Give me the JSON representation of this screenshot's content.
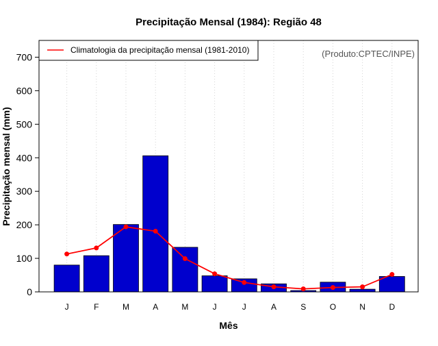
{
  "chart_data": {
    "type": "bar",
    "title": "Precipitação Mensal (1984): Região 48",
    "xlabel": "Mês",
    "ylabel": "Precipitação mensal (mm)",
    "ylim": [
      0,
      750
    ],
    "yticks": [
      0,
      100,
      200,
      300,
      400,
      500,
      600,
      700
    ],
    "categories": [
      "J",
      "F",
      "M",
      "A",
      "M",
      "J",
      "J",
      "A",
      "S",
      "O",
      "N",
      "D"
    ],
    "series": [
      {
        "name": "Precipitação mensal (1984)",
        "type": "bar",
        "color": "#0000cd",
        "values": [
          80,
          108,
          201,
          406,
          133,
          48,
          39,
          24,
          4,
          29,
          8,
          46
        ]
      },
      {
        "name": "Climatologia da precipitação mensal (1981-2010)",
        "type": "line",
        "color": "#ff0000",
        "values": [
          113,
          131,
          194,
          181,
          99,
          54,
          28,
          15,
          9,
          13,
          15,
          52
        ]
      }
    ],
    "legend": {
      "position": "top-left",
      "entries": [
        "Climatologia da precipitação mensal (1981-2010)"
      ]
    },
    "annotation": "(Produto:CPTEC/INPE)",
    "grid": "vertical-dotted"
  }
}
